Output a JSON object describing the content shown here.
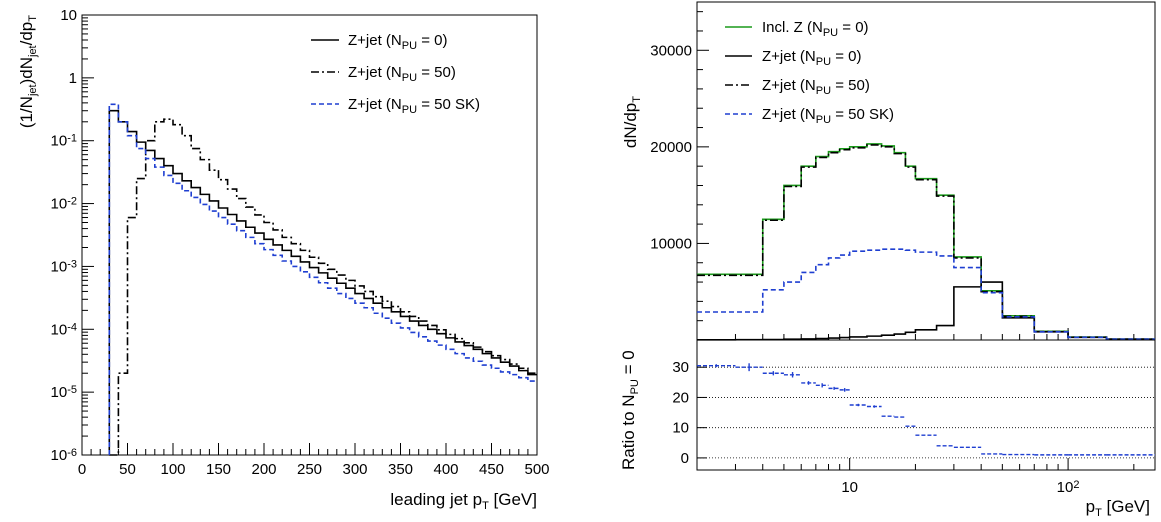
{
  "chart_data": [
    {
      "type": "line",
      "subtype": "step-histogram",
      "title": "",
      "xlabel": "leading jet p_T [GeV]",
      "ylabel": "(1/N_jet)dN_jet/dp_T",
      "xlim": [
        0,
        500
      ],
      "ylim": [
        1e-06,
        10
      ],
      "yscale": "log",
      "grid": false,
      "legend_position": "top-right",
      "x_tick_labels": [
        "0",
        "50",
        "100",
        "150",
        "200",
        "250",
        "300",
        "350",
        "400",
        "450",
        "500"
      ],
      "y_tick_labels": [
        {
          "value": 1e-06,
          "base": "10",
          "exp": "-6"
        },
        {
          "value": 1e-05,
          "base": "10",
          "exp": "-5"
        },
        {
          "value": 0.0001,
          "base": "10",
          "exp": "-4"
        },
        {
          "value": 0.001,
          "base": "10",
          "exp": "-3"
        },
        {
          "value": 0.01,
          "base": "10",
          "exp": "-2"
        },
        {
          "value": 0.1,
          "base": "10",
          "exp": "-1"
        },
        {
          "value": 1,
          "base": "1",
          "exp": ""
        },
        {
          "value": 10,
          "base": "10",
          "exp": ""
        }
      ],
      "x": [
        35,
        45,
        55,
        65,
        75,
        85,
        95,
        105,
        115,
        125,
        135,
        145,
        155,
        165,
        175,
        185,
        195,
        205,
        215,
        225,
        235,
        245,
        255,
        265,
        275,
        285,
        295,
        305,
        315,
        325,
        335,
        345,
        355,
        365,
        375,
        385,
        395,
        405,
        415,
        425,
        435,
        445,
        455,
        465,
        475,
        485,
        495
      ],
      "series": [
        {
          "name": "Z+jet (N_PU = 0)",
          "color": "#000000",
          "dash": "solid",
          "values": [
            0.3,
            0.2,
            0.14,
            0.095,
            0.07,
            0.052,
            0.04,
            0.03,
            0.023,
            0.018,
            0.014,
            0.011,
            0.0085,
            0.0067,
            0.0053,
            0.0042,
            0.0034,
            0.0027,
            0.0022,
            0.0018,
            0.00145,
            0.00118,
            0.00096,
            0.00079,
            0.00065,
            0.00054,
            0.00045,
            0.00037,
            0.00031,
            0.00026,
            0.00022,
            0.00019,
            0.00016,
            0.000135,
            0.000115,
            0.0001,
            8.5e-05,
            7.3e-05,
            6.3e-05,
            5.5e-05,
            4.8e-05,
            4.1e-05,
            3.5e-05,
            3e-05,
            2.6e-05,
            2.2e-05,
            1.9e-05
          ]
        },
        {
          "name": "Z+jet (N_PU = 50)",
          "color": "#000000",
          "dash": "dashdot",
          "values": [
            1e-06,
            2e-05,
            0.006,
            0.025,
            0.1,
            0.2,
            0.22,
            0.18,
            0.12,
            0.075,
            0.05,
            0.034,
            0.024,
            0.017,
            0.012,
            0.0088,
            0.0066,
            0.005,
            0.0038,
            0.0029,
            0.0023,
            0.0018,
            0.0014,
            0.00112,
            0.0009,
            0.00073,
            0.0006,
            0.00049,
            0.0004,
            0.00033,
            0.00028,
            0.00023,
            0.00019,
            0.00016,
            0.000135,
            0.000115,
            9.8e-05,
            8.3e-05,
            7.1e-05,
            6.1e-05,
            5.2e-05,
            4.4e-05,
            3.8e-05,
            3.3e-05,
            2.8e-05,
            2.4e-05,
            2e-05
          ]
        },
        {
          "name": "Z+jet (N_PU = 50 SK)",
          "color": "#1f3fd1",
          "dash": "dashed",
          "values": [
            0.38,
            0.2,
            0.12,
            0.075,
            0.052,
            0.038,
            0.028,
            0.021,
            0.016,
            0.0125,
            0.0097,
            0.0076,
            0.006,
            0.0047,
            0.0037,
            0.0029,
            0.0023,
            0.00185,
            0.0015,
            0.00122,
            0.001,
            0.00082,
            0.00067,
            0.00055,
            0.00045,
            0.00037,
            0.00031,
            0.00026,
            0.00022,
            0.00018,
            0.00015,
            0.000125,
            0.000105,
            8.9e-05,
            7.6e-05,
            6.5e-05,
            5.6e-05,
            4.8e-05,
            4.1e-05,
            3.5e-05,
            3.1e-05,
            2.7e-05,
            2.4e-05,
            2.1e-05,
            1.9e-05,
            1.7e-05,
            1.5e-05
          ]
        }
      ]
    },
    {
      "type": "line",
      "subtype": "step-histogram",
      "title": "",
      "xlabel": "p_T [GeV]",
      "ylabel": "dN/dp_T",
      "xscale": "log",
      "xlim": [
        2,
        250
      ],
      "ylim": [
        0,
        35000
      ],
      "grid": false,
      "legend_position": "top-left",
      "y_tick_labels": [
        "10000",
        "20000",
        "30000"
      ],
      "x_tick_labels": [
        {
          "value": 10,
          "base": "10",
          "exp": ""
        },
        {
          "value": 100,
          "base": "10",
          "exp": "2"
        }
      ],
      "bin_edges": [
        2,
        3,
        4,
        5,
        6,
        7,
        8,
        9,
        10,
        12,
        14,
        16,
        18,
        20,
        25,
        30,
        40,
        50,
        70,
        100,
        150,
        250
      ],
      "series": [
        {
          "name": "Incl. Z (N_PU = 0)",
          "color": "#1a9a1a",
          "dash": "solid",
          "values": [
            6800,
            6800,
            12500,
            16000,
            18000,
            19000,
            19500,
            19800,
            20000,
            20300,
            20100,
            19400,
            18000,
            16700,
            15000,
            8600,
            5100,
            2500,
            900,
            300,
            80
          ]
        },
        {
          "name": "Z+jet (N_PU = 0)",
          "color": "#000000",
          "dash": "solid",
          "values": [
            20,
            30,
            50,
            80,
            110,
            150,
            200,
            250,
            320,
            400,
            500,
            620,
            800,
            1050,
            1500,
            5500,
            6000,
            2300,
            850,
            280,
            80
          ]
        },
        {
          "name": "Z+jet (N_PU = 50)",
          "color": "#000000",
          "dash": "dashdot",
          "values": [
            6700,
            6700,
            12400,
            15900,
            17900,
            18900,
            19400,
            19700,
            19900,
            20200,
            20000,
            19300,
            17900,
            16600,
            14900,
            8500,
            5000,
            2450,
            880,
            290,
            80
          ]
        },
        {
          "name": "Z+jet (N_PU = 50 SK)",
          "color": "#1f3fd1",
          "dash": "dashed",
          "values": [
            2900,
            2900,
            5200,
            6000,
            7000,
            7800,
            8500,
            8800,
            9200,
            9300,
            9400,
            9400,
            9300,
            9100,
            8700,
            7500,
            4900,
            2400,
            850,
            280,
            80
          ]
        }
      ]
    },
    {
      "type": "scatter",
      "subtype": "ratio-panel",
      "title": "",
      "xlabel": "p_T [GeV]",
      "ylabel": "Ratio to N_PU = 0",
      "xscale": "log",
      "xlim": [
        2,
        250
      ],
      "ylim": [
        -4,
        39
      ],
      "y_tick_labels": [
        "0",
        "10",
        "20",
        "30"
      ],
      "reference_lines": [
        0,
        10,
        20,
        30
      ],
      "bin_edges": [
        2,
        3,
        4,
        5,
        6,
        7,
        8,
        9,
        10,
        12,
        14,
        16,
        18,
        20,
        25,
        30,
        40,
        50,
        70,
        100,
        150,
        250
      ],
      "series": [
        {
          "name": "Z+jet (N_PU = 50 SK)",
          "color": "#1f3fd1",
          "values": [
            30.5,
            30.0,
            28.0,
            27.5,
            24.8,
            24.0,
            23.0,
            22.5,
            17.5,
            17.0,
            13.8,
            13.5,
            10.5,
            7.5,
            4.0,
            3.5,
            1.3,
            1.1,
            1.0,
            1.0,
            1.0
          ],
          "errors": [
            0.5,
            1.3,
            0.7,
            0.9,
            0.6,
            0.7,
            0.5,
            0.6,
            0.4,
            0.4,
            0.3,
            0.3,
            0.2,
            0.2,
            0.1,
            0.1,
            0.05,
            0.05,
            0.05,
            0.05,
            0.05
          ]
        }
      ]
    }
  ]
}
